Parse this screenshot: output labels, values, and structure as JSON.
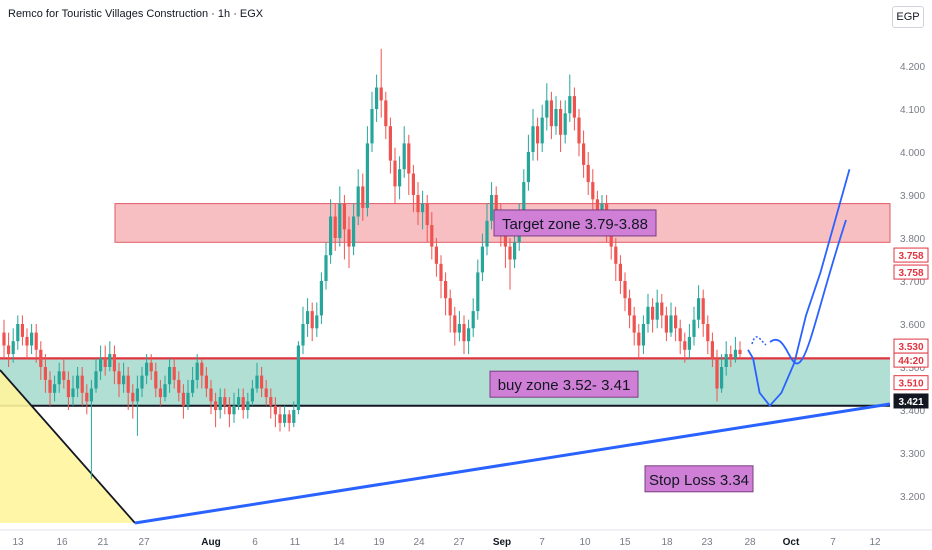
{
  "header": {
    "title": "Remco for Touristic Villages Construction · 1h · EGX",
    "currency": "EGP"
  },
  "chart_data": {
    "type": "candlestick",
    "symbol_title": "Remco for Touristic Villages Construction · 1h · EGX",
    "ylim": [
      3.15,
      4.26
    ],
    "y_ticks": [
      "4.200",
      "4.100",
      "4.000",
      "3.900",
      "3.800",
      "3.700",
      "3.600",
      "3.500",
      "3.400",
      "3.300",
      "3.200"
    ],
    "x_ticks": [
      {
        "label": "13",
        "bold": false
      },
      {
        "label": "16",
        "bold": false
      },
      {
        "label": "21",
        "bold": false
      },
      {
        "label": "27",
        "bold": false
      },
      {
        "label": "Aug",
        "bold": true
      },
      {
        "label": "6",
        "bold": false
      },
      {
        "label": "11",
        "bold": false
      },
      {
        "label": "14",
        "bold": false
      },
      {
        "label": "19",
        "bold": false
      },
      {
        "label": "24",
        "bold": false
      },
      {
        "label": "27",
        "bold": false
      },
      {
        "label": "Sep",
        "bold": true
      },
      {
        "label": "7",
        "bold": false
      },
      {
        "label": "10",
        "bold": false
      },
      {
        "label": "15",
        "bold": false
      },
      {
        "label": "18",
        "bold": false
      },
      {
        "label": "23",
        "bold": false
      },
      {
        "label": "28",
        "bold": false
      },
      {
        "label": "Oct",
        "bold": true
      },
      {
        "label": "7",
        "bold": false
      },
      {
        "label": "12",
        "bold": false
      }
    ],
    "price_labels": [
      {
        "text": "3.758",
        "value": 3.758,
        "style": "red-outline"
      },
      {
        "text": "3.758",
        "value": 3.758,
        "style": "red-outline"
      },
      {
        "text": "3.530",
        "value": 3.53,
        "style": "red-outline"
      },
      {
        "text": "44:20",
        "value": 3.53,
        "style": "red-outline"
      },
      {
        "text": "3.510",
        "value": 3.51,
        "style": "red-outline"
      },
      {
        "text": "3.421",
        "value": 3.421,
        "style": "black-solid"
      }
    ],
    "zones": [
      {
        "name": "target",
        "from": 3.79,
        "to": 3.88,
        "color": "#f7b4b9"
      },
      {
        "name": "buy",
        "from": 3.41,
        "to": 3.52,
        "color": "#a8dccf"
      }
    ],
    "annotations": [
      {
        "text": "Target zone 3.79-3.88",
        "value": 3.835
      },
      {
        "text": "buy zone 3.52- 3.41",
        "value": 3.46
      },
      {
        "text": "Stop Loss 3.34",
        "value": 3.24
      }
    ],
    "legend": "none",
    "grid": false,
    "colors": {
      "up": "#26a69a",
      "down": "#ef5350",
      "trendline": "#2962ff",
      "forecast": "#2962ff",
      "triangle": "#fff59d"
    },
    "candles": [
      [
        3.58,
        3.55,
        3.61,
        3.52
      ],
      [
        3.55,
        3.53,
        3.58,
        3.5
      ],
      [
        3.53,
        3.56,
        3.59,
        3.51
      ],
      [
        3.56,
        3.6,
        3.62,
        3.54
      ],
      [
        3.6,
        3.57,
        3.62,
        3.55
      ],
      [
        3.57,
        3.55,
        3.59,
        3.52
      ],
      [
        3.55,
        3.58,
        3.6,
        3.53
      ],
      [
        3.58,
        3.54,
        3.6,
        3.51
      ],
      [
        3.54,
        3.5,
        3.56,
        3.47
      ],
      [
        3.5,
        3.47,
        3.53,
        3.44
      ],
      [
        3.47,
        3.44,
        3.49,
        3.41
      ],
      [
        3.44,
        3.46,
        3.48,
        3.42
      ],
      [
        3.46,
        3.49,
        3.51,
        3.44
      ],
      [
        3.49,
        3.47,
        3.52,
        3.45
      ],
      [
        3.47,
        3.43,
        3.49,
        3.4
      ],
      [
        3.43,
        3.45,
        3.48,
        3.41
      ],
      [
        3.45,
        3.48,
        3.5,
        3.43
      ],
      [
        3.48,
        3.44,
        3.5,
        3.41
      ],
      [
        3.44,
        3.42,
        3.46,
        3.39
      ],
      [
        3.42,
        3.45,
        3.47,
        3.24
      ],
      [
        3.45,
        3.49,
        3.52,
        3.44
      ],
      [
        3.49,
        3.52,
        3.55,
        3.47
      ],
      [
        3.52,
        3.5,
        3.55,
        3.48
      ],
      [
        3.5,
        3.53,
        3.56,
        3.49
      ],
      [
        3.53,
        3.49,
        3.55,
        3.46
      ],
      [
        3.49,
        3.46,
        3.51,
        3.43
      ],
      [
        3.46,
        3.48,
        3.51,
        3.44
      ],
      [
        3.48,
        3.44,
        3.5,
        3.4
      ],
      [
        3.44,
        3.42,
        3.46,
        3.38
      ],
      [
        3.42,
        3.45,
        3.48,
        3.34
      ],
      [
        3.45,
        3.48,
        3.5,
        3.43
      ],
      [
        3.48,
        3.51,
        3.53,
        3.46
      ],
      [
        3.51,
        3.49,
        3.53,
        3.47
      ],
      [
        3.49,
        3.45,
        3.51,
        3.43
      ],
      [
        3.45,
        3.43,
        3.47,
        3.41
      ],
      [
        3.43,
        3.46,
        3.48,
        3.42
      ],
      [
        3.46,
        3.5,
        3.52,
        3.44
      ],
      [
        3.5,
        3.47,
        3.52,
        3.45
      ],
      [
        3.47,
        3.44,
        3.49,
        3.42
      ],
      [
        3.44,
        3.41,
        3.46,
        3.38
      ],
      [
        3.41,
        3.44,
        3.47,
        3.4
      ],
      [
        3.44,
        3.47,
        3.5,
        3.43
      ],
      [
        3.47,
        3.51,
        3.53,
        3.45
      ],
      [
        3.51,
        3.48,
        3.52,
        3.45
      ],
      [
        3.48,
        3.45,
        3.5,
        3.43
      ],
      [
        3.45,
        3.42,
        3.47,
        3.39
      ],
      [
        3.42,
        3.4,
        3.44,
        3.36
      ],
      [
        3.4,
        3.43,
        3.45,
        3.38
      ],
      [
        3.43,
        3.41,
        3.45,
        3.39
      ],
      [
        3.41,
        3.39,
        3.43,
        3.36
      ],
      [
        3.39,
        3.41,
        3.44,
        3.37
      ],
      [
        3.41,
        3.43,
        3.45,
        3.4
      ],
      [
        3.43,
        3.4,
        3.45,
        3.38
      ],
      [
        3.4,
        3.42,
        3.44,
        3.38
      ],
      [
        3.42,
        3.45,
        3.47,
        3.41
      ],
      [
        3.45,
        3.48,
        3.51,
        3.44
      ],
      [
        3.48,
        3.45,
        3.5,
        3.43
      ],
      [
        3.45,
        3.43,
        3.47,
        3.41
      ],
      [
        3.43,
        3.41,
        3.45,
        3.38
      ],
      [
        3.41,
        3.39,
        3.43,
        3.36
      ],
      [
        3.39,
        3.37,
        3.41,
        3.35
      ],
      [
        3.37,
        3.39,
        3.41,
        3.36
      ],
      [
        3.39,
        3.37,
        3.4,
        3.35
      ],
      [
        3.37,
        3.4,
        3.42,
        3.36
      ],
      [
        3.4,
        3.55,
        3.56,
        3.39
      ],
      [
        3.55,
        3.6,
        3.64,
        3.53
      ],
      [
        3.6,
        3.63,
        3.66,
        3.57
      ],
      [
        3.63,
        3.59,
        3.65,
        3.56
      ],
      [
        3.59,
        3.62,
        3.65,
        3.57
      ],
      [
        3.62,
        3.7,
        3.72,
        3.6
      ],
      [
        3.7,
        3.76,
        3.79,
        3.68
      ],
      [
        3.76,
        3.85,
        3.89,
        3.74
      ],
      [
        3.85,
        3.8,
        3.88,
        3.77
      ],
      [
        3.8,
        3.88,
        3.92,
        3.78
      ],
      [
        3.88,
        3.82,
        3.9,
        3.75
      ],
      [
        3.82,
        3.78,
        3.85,
        3.73
      ],
      [
        3.78,
        3.85,
        3.88,
        3.76
      ],
      [
        3.85,
        3.92,
        3.96,
        3.83
      ],
      [
        3.92,
        3.87,
        3.95,
        3.84
      ],
      [
        3.87,
        4.02,
        4.06,
        3.85
      ],
      [
        4.02,
        4.1,
        4.14,
        4.0
      ],
      [
        4.1,
        4.15,
        4.18,
        4.07
      ],
      [
        4.15,
        4.12,
        4.24,
        4.08
      ],
      [
        4.12,
        4.06,
        4.14,
        4.03
      ],
      [
        4.06,
        3.98,
        4.08,
        3.95
      ],
      [
        3.98,
        3.92,
        4.01,
        3.88
      ],
      [
        3.92,
        3.96,
        3.99,
        3.89
      ],
      [
        3.96,
        4.02,
        4.06,
        3.94
      ],
      [
        4.02,
        3.95,
        4.04,
        3.9
      ],
      [
        3.95,
        3.9,
        3.97,
        3.86
      ],
      [
        3.9,
        3.86,
        3.93,
        3.83
      ],
      [
        3.86,
        3.88,
        3.91,
        3.82
      ],
      [
        3.88,
        3.83,
        3.9,
        3.79
      ],
      [
        3.83,
        3.78,
        3.86,
        3.75
      ],
      [
        3.78,
        3.74,
        3.8,
        3.71
      ],
      [
        3.74,
        3.7,
        3.76,
        3.66
      ],
      [
        3.7,
        3.66,
        3.72,
        3.62
      ],
      [
        3.66,
        3.62,
        3.68,
        3.58
      ],
      [
        3.62,
        3.58,
        3.64,
        3.55
      ],
      [
        3.58,
        3.6,
        3.63,
        3.56
      ],
      [
        3.6,
        3.56,
        3.62,
        3.53
      ],
      [
        3.56,
        3.59,
        3.61,
        3.53
      ],
      [
        3.59,
        3.63,
        3.66,
        3.57
      ],
      [
        3.63,
        3.72,
        3.75,
        3.61
      ],
      [
        3.72,
        3.78,
        3.81,
        3.7
      ],
      [
        3.78,
        3.84,
        3.88,
        3.76
      ],
      [
        3.84,
        3.9,
        3.93,
        3.82
      ],
      [
        3.9,
        3.86,
        3.92,
        3.83
      ],
      [
        3.86,
        3.82,
        3.88,
        3.78
      ],
      [
        3.82,
        3.78,
        3.84,
        3.73
      ],
      [
        3.78,
        3.75,
        3.8,
        3.68
      ],
      [
        3.75,
        3.79,
        3.82,
        3.73
      ],
      [
        3.79,
        3.85,
        3.88,
        3.77
      ],
      [
        3.85,
        3.93,
        3.96,
        3.83
      ],
      [
        3.93,
        4.0,
        4.04,
        3.91
      ],
      [
        4.0,
        4.06,
        4.1,
        3.98
      ],
      [
        4.06,
        4.02,
        4.08,
        3.98
      ],
      [
        4.02,
        4.08,
        4.11,
        4.0
      ],
      [
        4.08,
        4.12,
        4.16,
        4.05
      ],
      [
        4.12,
        4.06,
        4.14,
        4.03
      ],
      [
        4.06,
        4.1,
        4.13,
        4.04
      ],
      [
        4.1,
        4.04,
        4.12,
        4.0
      ],
      [
        4.04,
        4.09,
        4.12,
        4.02
      ],
      [
        4.09,
        4.13,
        4.18,
        4.07
      ],
      [
        4.13,
        4.08,
        4.15,
        4.05
      ],
      [
        4.08,
        4.02,
        4.1,
        3.99
      ],
      [
        4.02,
        3.97,
        4.05,
        3.94
      ],
      [
        3.97,
        3.93,
        4.0,
        3.9
      ],
      [
        3.93,
        3.89,
        3.96,
        3.86
      ],
      [
        3.89,
        3.86,
        3.91,
        3.83
      ],
      [
        3.86,
        3.88,
        3.9,
        3.84
      ],
      [
        3.88,
        3.82,
        3.9,
        3.79
      ],
      [
        3.82,
        3.78,
        3.84,
        3.75
      ],
      [
        3.78,
        3.74,
        3.8,
        3.7
      ],
      [
        3.74,
        3.7,
        3.76,
        3.67
      ],
      [
        3.7,
        3.66,
        3.72,
        3.63
      ],
      [
        3.66,
        3.62,
        3.68,
        3.59
      ],
      [
        3.62,
        3.58,
        3.64,
        3.55
      ],
      [
        3.58,
        3.55,
        3.6,
        3.52
      ],
      [
        3.55,
        3.6,
        3.62,
        3.53
      ],
      [
        3.6,
        3.64,
        3.67,
        3.58
      ],
      [
        3.64,
        3.61,
        3.66,
        3.58
      ],
      [
        3.61,
        3.65,
        3.68,
        3.59
      ],
      [
        3.65,
        3.62,
        3.67,
        3.59
      ],
      [
        3.62,
        3.58,
        3.64,
        3.56
      ],
      [
        3.58,
        3.62,
        3.65,
        3.57
      ],
      [
        3.62,
        3.59,
        3.64,
        3.56
      ],
      [
        3.59,
        3.56,
        3.61,
        3.53
      ],
      [
        3.56,
        3.54,
        3.58,
        3.51
      ],
      [
        3.54,
        3.57,
        3.6,
        3.52
      ],
      [
        3.57,
        3.61,
        3.64,
        3.55
      ],
      [
        3.61,
        3.66,
        3.69,
        3.59
      ],
      [
        3.66,
        3.6,
        3.68,
        3.57
      ],
      [
        3.6,
        3.56,
        3.62,
        3.53
      ],
      [
        3.56,
        3.52,
        3.58,
        3.5
      ],
      [
        3.52,
        3.45,
        3.54,
        3.42
      ],
      [
        3.45,
        3.5,
        3.53,
        3.44
      ],
      [
        3.5,
        3.53,
        3.56,
        3.48
      ],
      [
        3.53,
        3.52,
        3.55,
        3.5
      ],
      [
        3.52,
        3.54,
        3.57,
        3.51
      ],
      [
        3.54,
        3.53,
        3.56,
        3.52
      ]
    ],
    "forecast": [
      [
        0.0,
        3.54
      ],
      [
        0.35,
        3.52
      ],
      [
        0.8,
        3.44
      ],
      [
        1.5,
        3.41
      ],
      [
        2.3,
        3.44
      ],
      [
        3.2,
        3.51
      ],
      [
        4.0,
        3.62
      ],
      [
        5.0,
        3.72
      ],
      [
        6.0,
        3.84
      ],
      [
        7.0,
        3.96
      ]
    ]
  }
}
